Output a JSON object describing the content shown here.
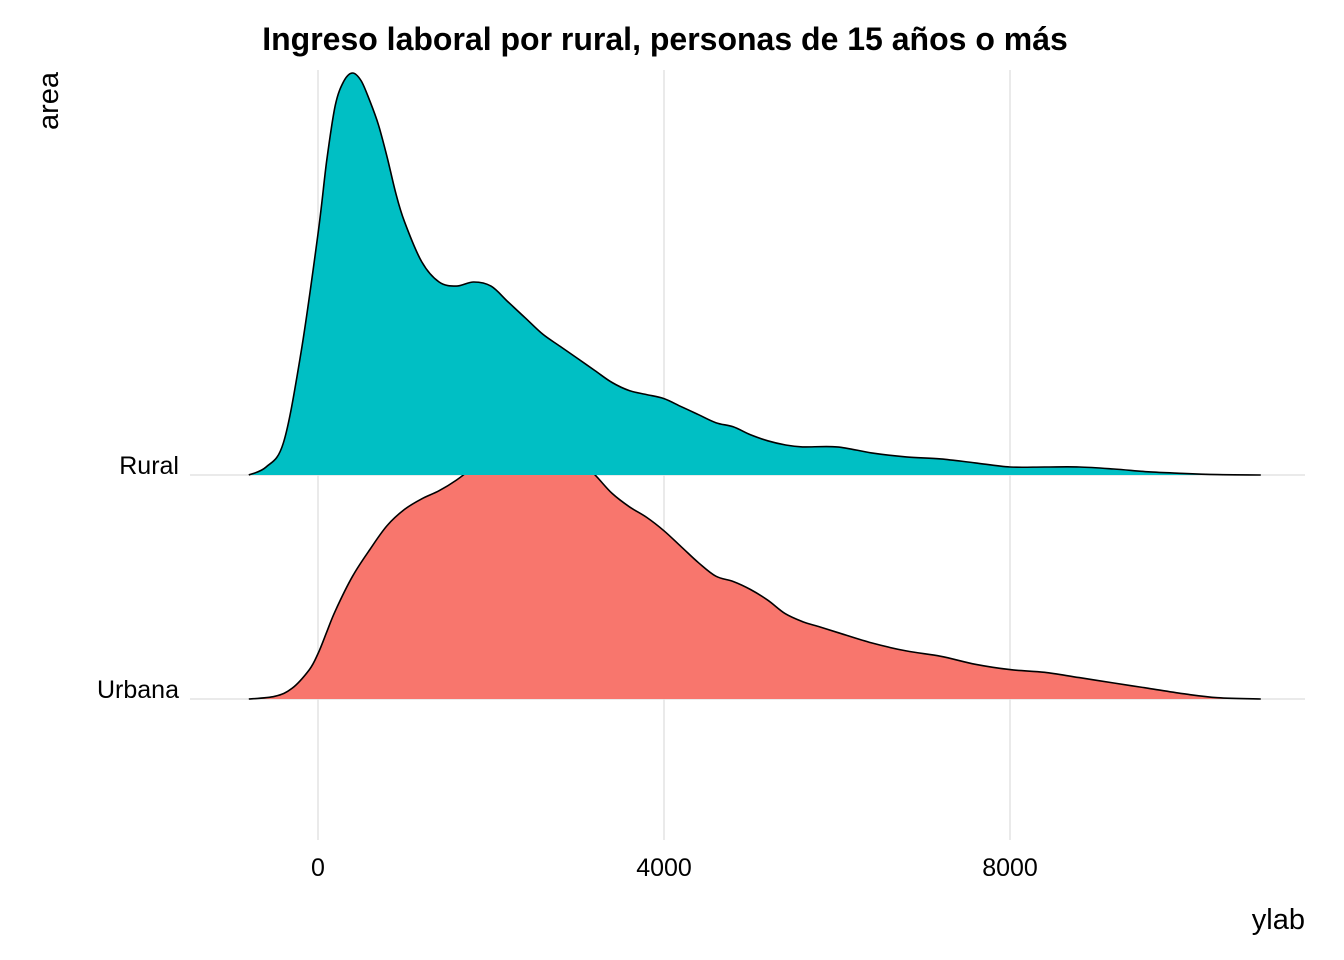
{
  "chart_data": {
    "type": "area",
    "subtype": "ridgeline-density",
    "title": "Ingreso laboral por rural, personas de 15 años o más",
    "xlabel": "ylab",
    "ylabel": "area",
    "xlim": [
      -800,
      10900
    ],
    "x_ticks": [
      0,
      4000,
      8000
    ],
    "x_tick_labels": [
      "0",
      "4000",
      "8000"
    ],
    "grid": "vertical-major",
    "legend": "none",
    "categories": [
      "Urbana",
      "Rural"
    ],
    "series": [
      {
        "name": "Urbana",
        "color": "#F8766D",
        "x": [
          -800,
          -500,
          -300,
          -100,
          0,
          100,
          200,
          400,
          600,
          800,
          1000,
          1200,
          1400,
          1600,
          1800,
          2000,
          2200,
          2400,
          2600,
          2800,
          3000,
          3200,
          3400,
          3600,
          3800,
          4000,
          4200,
          4400,
          4600,
          4800,
          5000,
          5200,
          5400,
          5600,
          5800,
          6000,
          6400,
          6800,
          7200,
          7600,
          8000,
          8400,
          8800,
          9200,
          9600,
          10000,
          10400,
          10900
        ],
        "density": [
          0.0,
          0.01,
          0.04,
          0.11,
          0.17,
          0.25,
          0.33,
          0.46,
          0.56,
          0.65,
          0.71,
          0.75,
          0.78,
          0.82,
          0.87,
          0.93,
          0.98,
          1.0,
          0.98,
          0.94,
          0.9,
          0.84,
          0.77,
          0.72,
          0.68,
          0.63,
          0.57,
          0.51,
          0.46,
          0.44,
          0.41,
          0.37,
          0.32,
          0.29,
          0.27,
          0.25,
          0.21,
          0.18,
          0.16,
          0.13,
          0.11,
          0.1,
          0.08,
          0.06,
          0.04,
          0.02,
          0.005,
          0.0
        ]
      },
      {
        "name": "Rural",
        "color": "#00BFC4",
        "x": [
          -800,
          -600,
          -400,
          -200,
          0,
          100,
          200,
          300,
          400,
          500,
          600,
          700,
          800,
          900,
          1000,
          1200,
          1400,
          1600,
          1800,
          2000,
          2200,
          2400,
          2600,
          2800,
          3000,
          3200,
          3400,
          3600,
          3800,
          4000,
          4200,
          4400,
          4600,
          4800,
          5000,
          5200,
          5400,
          5600,
          6000,
          6400,
          6800,
          7200,
          7600,
          8000,
          8400,
          8800,
          9200,
          9600,
          10000,
          10400,
          10900
        ],
        "density": [
          0.0,
          0.02,
          0.08,
          0.3,
          0.6,
          0.78,
          0.92,
          0.98,
          1.0,
          0.98,
          0.93,
          0.87,
          0.79,
          0.7,
          0.63,
          0.53,
          0.48,
          0.47,
          0.48,
          0.47,
          0.43,
          0.39,
          0.35,
          0.32,
          0.29,
          0.26,
          0.23,
          0.21,
          0.2,
          0.19,
          0.17,
          0.15,
          0.13,
          0.12,
          0.1,
          0.085,
          0.075,
          0.07,
          0.07,
          0.055,
          0.045,
          0.04,
          0.03,
          0.02,
          0.02,
          0.02,
          0.015,
          0.008,
          0.004,
          0.001,
          0.0
        ]
      }
    ]
  }
}
